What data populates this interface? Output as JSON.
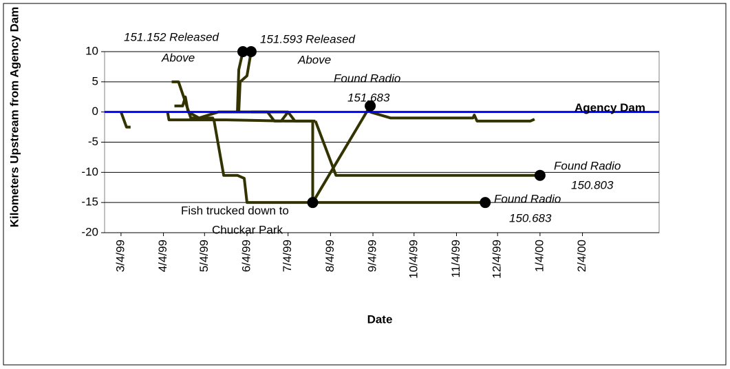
{
  "chart_data": {
    "type": "line",
    "xlabel": "Date",
    "ylabel": "Kilometers Upstream from Agency Dam",
    "xlim": [
      36211,
      36616
    ],
    "xticks": [
      {
        "value": 36223,
        "label": "3/4/99"
      },
      {
        "value": 36254,
        "label": "4/4/99"
      },
      {
        "value": 36284,
        "label": "5/4/99"
      },
      {
        "value": 36315,
        "label": "6/4/99"
      },
      {
        "value": 36345,
        "label": "7/4/99"
      },
      {
        "value": 36376,
        "label": "8/4/99"
      },
      {
        "value": 36407,
        "label": "9/4/99"
      },
      {
        "value": 36437,
        "label": "10/4/99"
      },
      {
        "value": 36468,
        "label": "11/4/99"
      },
      {
        "value": 36498,
        "label": "12/4/99"
      },
      {
        "value": 36529,
        "label": "1/4/00"
      },
      {
        "value": 36560,
        "label": "2/4/00"
      }
    ],
    "ylim": [
      -20,
      10
    ],
    "yticks": [
      -20,
      -15,
      -10,
      -5,
      0,
      5,
      10
    ],
    "grid": true,
    "reference_line": {
      "value": 0,
      "label": "Agency Dam",
      "color": "#0000ff"
    },
    "series": [
      {
        "color": "#333300",
        "x": [
          36223,
          36227,
          36230
        ],
        "values": [
          0,
          -2.5,
          -2.5
        ]
      },
      {
        "color": "#333300",
        "x": [
          36308,
          36309,
          36311,
          36312
        ],
        "values": [
          0,
          7,
          9,
          10
        ]
      },
      {
        "color": "#333300",
        "x": [
          36309,
          36310,
          36315,
          36318
        ],
        "values": [
          0,
          5,
          6,
          10
        ]
      },
      {
        "color": "#333300",
        "x": [
          36260,
          36265,
          36268,
          36271,
          36274,
          36290,
          36291,
          36298,
          36308,
          36313,
          36315,
          36363,
          36489
        ],
        "values": [
          5,
          5,
          3,
          1,
          -1,
          -1,
          -1.5,
          -10.5,
          -10.5,
          -11,
          -15,
          -15,
          -15
        ]
      },
      {
        "color": "#333300",
        "x": [
          36257,
          36258,
          36300,
          36343,
          36363,
          36363
        ],
        "values": [
          0,
          -1.3,
          -1.3,
          -1.5,
          -1.5,
          -15
        ]
      },
      {
        "color": "#333300",
        "x": [
          36363,
          36405
        ],
        "values": [
          -15,
          1
        ]
      },
      {
        "color": "#333300",
        "x": [
          36365,
          36380,
          36530
        ],
        "values": [
          -1.5,
          -10.5,
          -10.5
        ]
      },
      {
        "color": "#333300",
        "x": [
          36405,
          36420,
          36480,
          36481,
          36483,
          36522,
          36525
        ],
        "values": [
          0,
          -1,
          -1,
          -0.5,
          -1.5,
          -1.5,
          -1.2
        ]
      },
      {
        "color": "#333300",
        "x": [
          36318,
          36345,
          36350,
          36365
        ],
        "values": [
          0,
          0,
          -1.5,
          -1.5
        ]
      },
      {
        "color": "#333300",
        "x": [
          36262,
          36268,
          36270,
          36272,
          36280,
          36294,
          36330,
          36335,
          36340,
          36345
        ],
        "values": [
          1,
          1,
          2.5,
          0,
          -1,
          0,
          0,
          -1.5,
          -1.5,
          0
        ]
      }
    ],
    "markers": {
      "color": "#000000",
      "x": [
        36312,
        36318,
        36363,
        36405,
        36489,
        36529
      ],
      "values": [
        10,
        10,
        -15,
        1,
        -15,
        -10.5
      ]
    },
    "annotations": [
      {
        "lines": [
          "151.152 Released",
          "Above"
        ]
      },
      {
        "lines": [
          "151.593 Released",
          "Above"
        ]
      },
      {
        "lines": [
          "Found Radio",
          "151.683"
        ]
      },
      {
        "lines": [
          "Found Radio",
          "150.803"
        ]
      },
      {
        "lines": [
          "Fish trucked down to",
          "Chuckar Park"
        ]
      },
      {
        "lines": [
          "Found Radio",
          "150.683"
        ]
      }
    ]
  }
}
